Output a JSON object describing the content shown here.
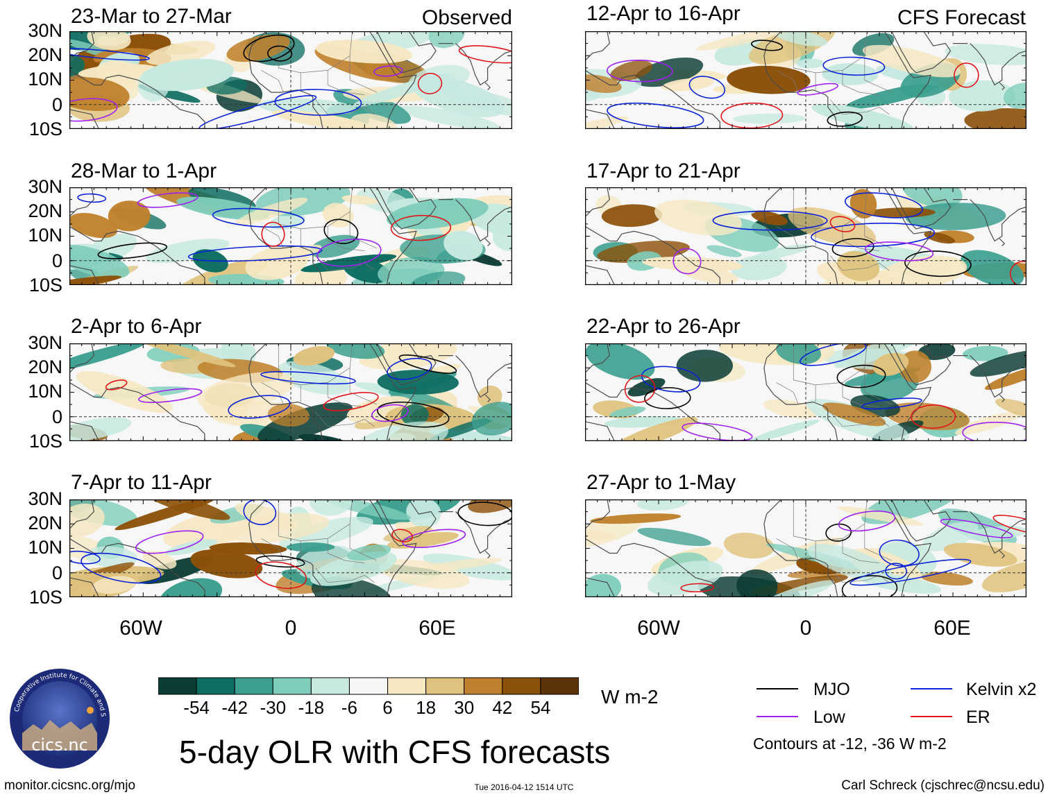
{
  "colors": {
    "mjo": "#000000",
    "kelvin": "#0b22d8",
    "low": "#a020f0",
    "er": "#e0161a",
    "land": "#4a4a4a"
  },
  "left_header_tag": "Observed",
  "right_header_tag": "CFS Forecast",
  "lat_ticks": [
    "30N",
    "20N",
    "10N",
    "0",
    "10S"
  ],
  "lon_ticks": [
    "60W",
    "0",
    "60E"
  ],
  "panels_left": [
    {
      "title": "23-Mar to 27-Mar"
    },
    {
      "title": "28-Mar to 1-Apr"
    },
    {
      "title": "2-Apr to 6-Apr"
    },
    {
      "title": "7-Apr to 11-Apr"
    }
  ],
  "panels_right": [
    {
      "title": "12-Apr to 16-Apr"
    },
    {
      "title": "17-Apr to 21-Apr"
    },
    {
      "title": "22-Apr to 26-Apr"
    },
    {
      "title": "27-Apr to 1-May"
    }
  ],
  "colorbar": {
    "units": "W m-2",
    "colors": [
      "#0b3d35",
      "#0f6e62",
      "#3c9f8f",
      "#7fcdbb",
      "#c7e9e0",
      "#f5f5f5",
      "#f6e8c3",
      "#dfc27d",
      "#bf812d",
      "#8c510a",
      "#5a3308"
    ],
    "labels": [
      "-54",
      "-42",
      "-30",
      "-18",
      "-6",
      "6",
      "18",
      "30",
      "42",
      "54"
    ]
  },
  "legend": {
    "mjo": "MJO",
    "kelvin": "Kelvin x2",
    "low": "Low",
    "er": "ER",
    "note": "Contours at -12, -36 W m-2"
  },
  "main_title": "5-day OLR with CFS forecasts",
  "logo_text": "cics.nc",
  "logo_ring_text": "Cooperative Institute for Climate and Satellites",
  "footer": {
    "url": "monitor.cicsnc.org/mjo",
    "timestamp": "Tue 2016-04-12 1514 UTC",
    "credit": "Carl Schreck (cjschrec@ncsu.edu)"
  },
  "chart_data": {
    "type": "heatmap",
    "title": "5-day OLR with CFS forecasts",
    "variable": "OLR anomaly",
    "units": "W m-2",
    "lon_range": [
      "90W",
      "90E"
    ],
    "lat_range": [
      "10S",
      "30N"
    ],
    "colorbar_levels": [
      -54,
      -42,
      -30,
      -18,
      -6,
      6,
      18,
      30,
      42,
      54
    ],
    "contour_levels": [
      -12,
      -36
    ],
    "contour_series": [
      "MJO",
      "Kelvin x2",
      "Low",
      "ER"
    ],
    "panels": [
      {
        "period": "23-Mar to 27-Mar",
        "source": "Observed"
      },
      {
        "period": "28-Mar to 1-Apr",
        "source": "Observed"
      },
      {
        "period": "2-Apr to 6-Apr",
        "source": "Observed"
      },
      {
        "period": "7-Apr to 11-Apr",
        "source": "Observed"
      },
      {
        "period": "12-Apr to 16-Apr",
        "source": "CFS Forecast"
      },
      {
        "period": "17-Apr to 21-Apr",
        "source": "CFS Forecast"
      },
      {
        "period": "22-Apr to 26-Apr",
        "source": "CFS Forecast"
      },
      {
        "period": "27-Apr to 1-May",
        "source": "CFS Forecast"
      }
    ]
  }
}
